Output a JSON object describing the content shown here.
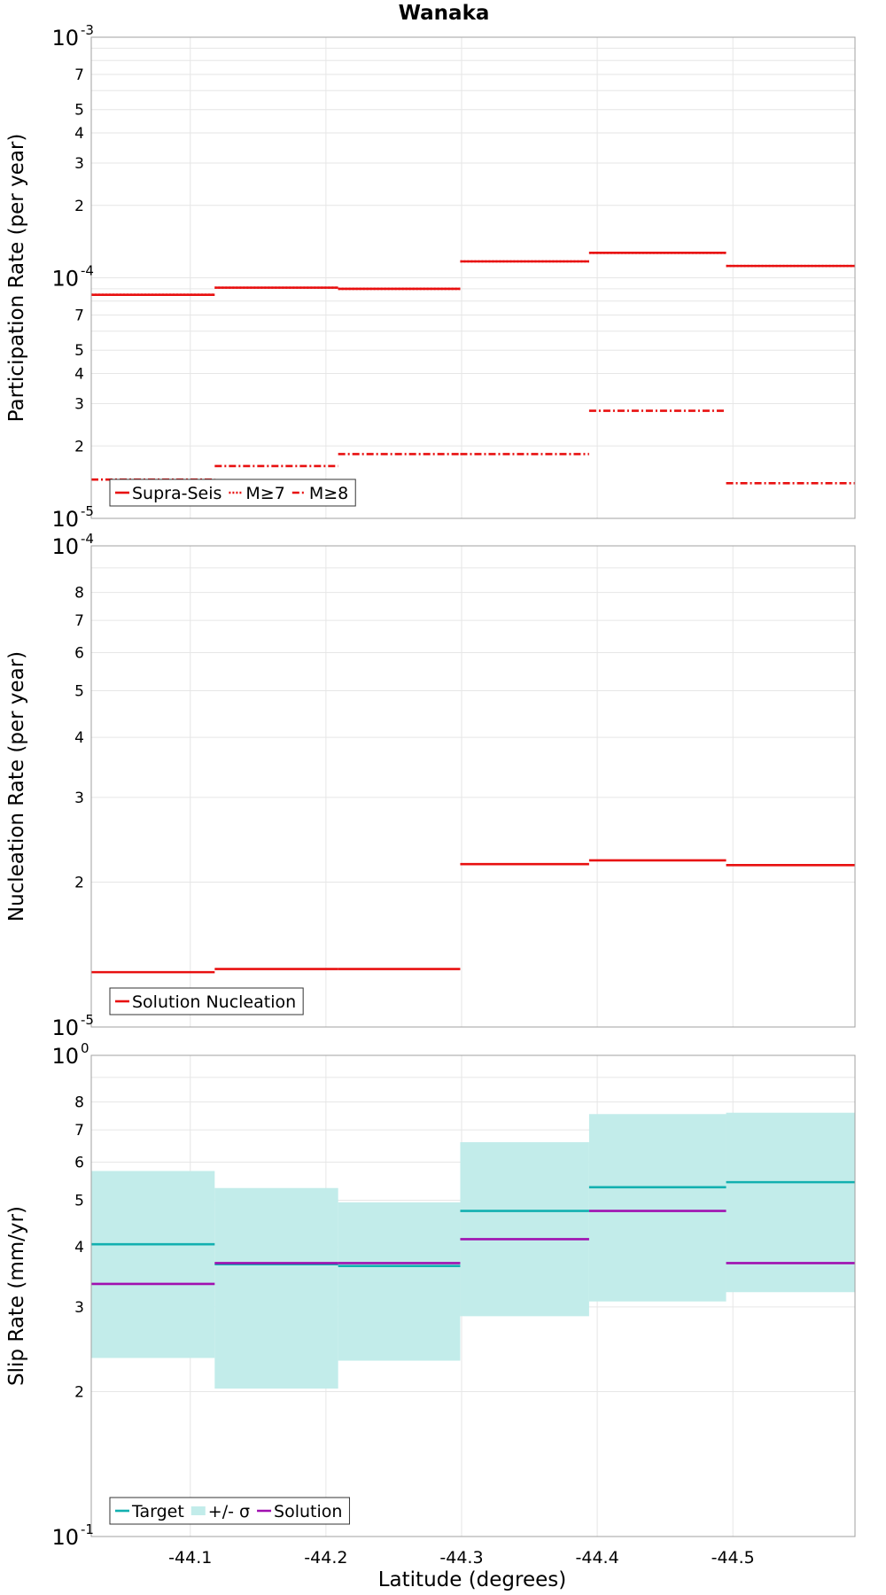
{
  "title": "Wanaka",
  "colors": {
    "supra": "#e81010",
    "target": "#12b0b0",
    "band": "#c2ecea",
    "solution": "#a010b0",
    "grid": "#e6e6e6",
    "frame": "#a0a0a0"
  },
  "chart_data": {
    "xlabel": "Latitude (degrees)",
    "x_ticks": [
      -44.1,
      -44.2,
      -44.3,
      -44.4,
      -44.5
    ],
    "x_tick_labels": [
      "-44.1",
      "-44.2",
      "-44.3",
      "-44.4",
      "-44.5"
    ],
    "x_bins": [
      [
        -44.027,
        -44.118
      ],
      [
        -44.118,
        -44.209
      ],
      [
        -44.209,
        -44.299
      ],
      [
        -44.299,
        -44.394
      ],
      [
        -44.394,
        -44.495
      ],
      [
        -44.495,
        -44.59
      ]
    ],
    "panels": [
      {
        "type": "line",
        "ylabel": "Participation Rate (per year)",
        "yscale": "log",
        "ylim": [
          1e-05,
          0.001
        ],
        "y_major_labels": [
          [
            "10",
            "-5"
          ],
          [
            "10",
            "-4"
          ],
          [
            "10",
            "-3"
          ]
        ],
        "y_minor_labels": [
          "2",
          "3",
          "4",
          "5",
          "7",
          "2",
          "3",
          "4",
          "5",
          "7"
        ],
        "legend_position": "lower-left",
        "series": [
          {
            "name": "Supra-Seis",
            "style": "solid",
            "values": [
              8.5e-05,
              9.1e-05,
              9e-05,
              0.000117,
              0.000127,
              0.000112
            ]
          },
          {
            "name": "M≥7",
            "style": "dotted",
            "values": [
              8.5e-05,
              9.1e-05,
              9e-05,
              0.000117,
              0.000127,
              0.000112
            ]
          },
          {
            "name": "M≥8",
            "style": "dashdot",
            "values": [
              1.45e-05,
              1.65e-05,
              1.85e-05,
              1.85e-05,
              2.8e-05,
              1.4e-05
            ]
          }
        ]
      },
      {
        "type": "line",
        "ylabel": "Nucleation Rate (per year)",
        "yscale": "log",
        "ylim": [
          1e-05,
          0.0001
        ],
        "y_major_labels": [
          [
            "10",
            "-5"
          ],
          [
            "10",
            "-4"
          ]
        ],
        "y_minor_labels": [
          "2",
          "3",
          "4",
          "5",
          "6",
          "7",
          "8"
        ],
        "legend_position": "lower-left",
        "series": [
          {
            "name": "Solution Nucleation",
            "style": "solid",
            "values": [
              1.3e-05,
              1.32e-05,
              1.32e-05,
              2.18e-05,
              2.22e-05,
              2.17e-05
            ]
          }
        ]
      },
      {
        "type": "line",
        "ylabel": "Slip Rate (mm/yr)",
        "yscale": "log",
        "ylim": [
          0.1,
          1.0
        ],
        "y_major_labels": [
          [
            "10",
            "-1"
          ],
          [
            "10",
            "0"
          ]
        ],
        "y_minor_labels": [
          "2",
          "3",
          "4",
          "5",
          "6",
          "7",
          "8"
        ],
        "legend_position": "lower-left",
        "band": {
          "name": "+/- σ",
          "upper": [
            0.575,
            0.53,
            0.495,
            0.66,
            0.755,
            0.76
          ],
          "lower": [
            0.235,
            0.203,
            0.232,
            0.287,
            0.308,
            0.322
          ]
        },
        "series": [
          {
            "name": "Target",
            "style": "solid",
            "values": [
              0.405,
              0.368,
              0.365,
              0.475,
              0.532,
              0.545
            ]
          },
          {
            "name": "Solution",
            "style": "solid",
            "values": [
              0.335,
              0.37,
              0.37,
              0.415,
              0.475,
              0.37
            ]
          }
        ]
      }
    ]
  }
}
